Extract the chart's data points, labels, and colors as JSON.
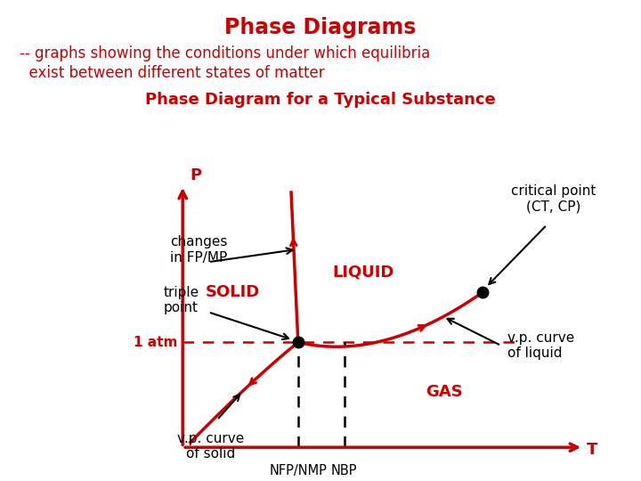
{
  "title": "Phase Diagrams",
  "subtitle_line1": "-- graphs showing the conditions under which equilibria",
  "subtitle_line2": "  exist between different states of matter",
  "subtitle2": "Phase Diagram for a Typical Substance",
  "title_color": "#cc0000",
  "subtitle_color": "#cc0000",
  "subtitle2_color": "#cc0000",
  "bg_color": "#ffffff",
  "curve_color": "#cc0000",
  "axis_color": "#cc0000",
  "dashed_color": "#cc0000",
  "black": "#000000",
  "label_solid": "SOLID",
  "label_liquid": "LIQUID",
  "label_gas": "GAS",
  "label_p": "P",
  "label_t": "T",
  "label_1atm": "1 atm",
  "label_nfp": "NFP/NMP",
  "label_nbp": "NBP",
  "label_triple": "triple\npoint",
  "label_critical": "critical point\n(CT, CP)",
  "label_changes": "changes\nin FP/MP",
  "label_vp_solid": "v.p. curve\nof solid",
  "label_vp_liquid": "v.p. curve\nof liquid",
  "ox": 0.285,
  "oy": 0.07,
  "rw": 0.6,
  "rh": 0.52,
  "triple_fx": 0.3,
  "triple_fy": 0.42,
  "critical_fx": 0.78,
  "critical_fy": 0.62,
  "atm_fy": 0.42,
  "nfp_fx": 0.3,
  "nbp_fx": 0.42
}
